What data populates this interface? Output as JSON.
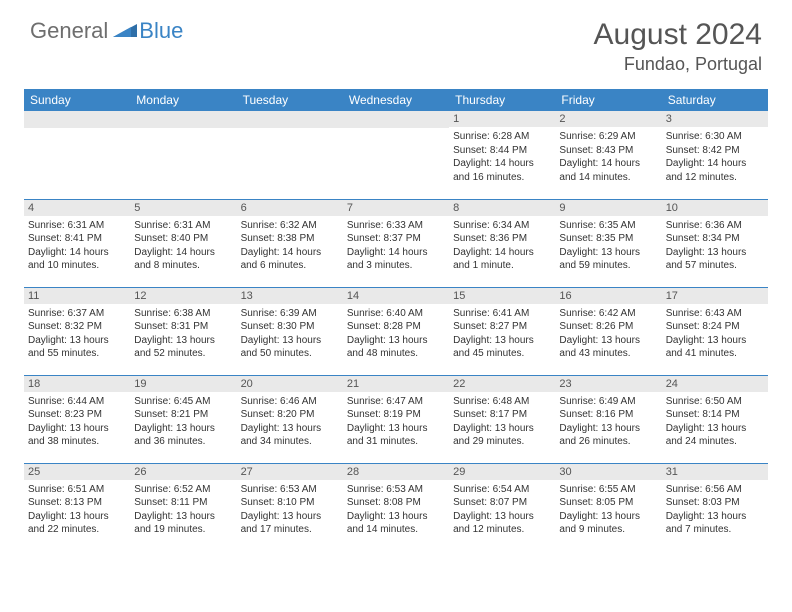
{
  "logo": {
    "text1": "General",
    "text2": "Blue"
  },
  "title": "August 2024",
  "location": "Fundao, Portugal",
  "colors": {
    "header_bg": "#3a84c5",
    "header_text": "#ffffff",
    "daynum_bg": "#e9e9e9",
    "border": "#3a84c5",
    "body_text": "#333333",
    "title_text": "#555555",
    "logo_gray": "#6e6e6e",
    "logo_blue": "#3a84c5"
  },
  "daysOfWeek": [
    "Sunday",
    "Monday",
    "Tuesday",
    "Wednesday",
    "Thursday",
    "Friday",
    "Saturday"
  ],
  "weeks": [
    [
      null,
      null,
      null,
      null,
      {
        "n": "1",
        "sr": "Sunrise: 6:28 AM",
        "ss": "Sunset: 8:44 PM",
        "dl": "Daylight: 14 hours and 16 minutes."
      },
      {
        "n": "2",
        "sr": "Sunrise: 6:29 AM",
        "ss": "Sunset: 8:43 PM",
        "dl": "Daylight: 14 hours and 14 minutes."
      },
      {
        "n": "3",
        "sr": "Sunrise: 6:30 AM",
        "ss": "Sunset: 8:42 PM",
        "dl": "Daylight: 14 hours and 12 minutes."
      }
    ],
    [
      {
        "n": "4",
        "sr": "Sunrise: 6:31 AM",
        "ss": "Sunset: 8:41 PM",
        "dl": "Daylight: 14 hours and 10 minutes."
      },
      {
        "n": "5",
        "sr": "Sunrise: 6:31 AM",
        "ss": "Sunset: 8:40 PM",
        "dl": "Daylight: 14 hours and 8 minutes."
      },
      {
        "n": "6",
        "sr": "Sunrise: 6:32 AM",
        "ss": "Sunset: 8:38 PM",
        "dl": "Daylight: 14 hours and 6 minutes."
      },
      {
        "n": "7",
        "sr": "Sunrise: 6:33 AM",
        "ss": "Sunset: 8:37 PM",
        "dl": "Daylight: 14 hours and 3 minutes."
      },
      {
        "n": "8",
        "sr": "Sunrise: 6:34 AM",
        "ss": "Sunset: 8:36 PM",
        "dl": "Daylight: 14 hours and 1 minute."
      },
      {
        "n": "9",
        "sr": "Sunrise: 6:35 AM",
        "ss": "Sunset: 8:35 PM",
        "dl": "Daylight: 13 hours and 59 minutes."
      },
      {
        "n": "10",
        "sr": "Sunrise: 6:36 AM",
        "ss": "Sunset: 8:34 PM",
        "dl": "Daylight: 13 hours and 57 minutes."
      }
    ],
    [
      {
        "n": "11",
        "sr": "Sunrise: 6:37 AM",
        "ss": "Sunset: 8:32 PM",
        "dl": "Daylight: 13 hours and 55 minutes."
      },
      {
        "n": "12",
        "sr": "Sunrise: 6:38 AM",
        "ss": "Sunset: 8:31 PM",
        "dl": "Daylight: 13 hours and 52 minutes."
      },
      {
        "n": "13",
        "sr": "Sunrise: 6:39 AM",
        "ss": "Sunset: 8:30 PM",
        "dl": "Daylight: 13 hours and 50 minutes."
      },
      {
        "n": "14",
        "sr": "Sunrise: 6:40 AM",
        "ss": "Sunset: 8:28 PM",
        "dl": "Daylight: 13 hours and 48 minutes."
      },
      {
        "n": "15",
        "sr": "Sunrise: 6:41 AM",
        "ss": "Sunset: 8:27 PM",
        "dl": "Daylight: 13 hours and 45 minutes."
      },
      {
        "n": "16",
        "sr": "Sunrise: 6:42 AM",
        "ss": "Sunset: 8:26 PM",
        "dl": "Daylight: 13 hours and 43 minutes."
      },
      {
        "n": "17",
        "sr": "Sunrise: 6:43 AM",
        "ss": "Sunset: 8:24 PM",
        "dl": "Daylight: 13 hours and 41 minutes."
      }
    ],
    [
      {
        "n": "18",
        "sr": "Sunrise: 6:44 AM",
        "ss": "Sunset: 8:23 PM",
        "dl": "Daylight: 13 hours and 38 minutes."
      },
      {
        "n": "19",
        "sr": "Sunrise: 6:45 AM",
        "ss": "Sunset: 8:21 PM",
        "dl": "Daylight: 13 hours and 36 minutes."
      },
      {
        "n": "20",
        "sr": "Sunrise: 6:46 AM",
        "ss": "Sunset: 8:20 PM",
        "dl": "Daylight: 13 hours and 34 minutes."
      },
      {
        "n": "21",
        "sr": "Sunrise: 6:47 AM",
        "ss": "Sunset: 8:19 PM",
        "dl": "Daylight: 13 hours and 31 minutes."
      },
      {
        "n": "22",
        "sr": "Sunrise: 6:48 AM",
        "ss": "Sunset: 8:17 PM",
        "dl": "Daylight: 13 hours and 29 minutes."
      },
      {
        "n": "23",
        "sr": "Sunrise: 6:49 AM",
        "ss": "Sunset: 8:16 PM",
        "dl": "Daylight: 13 hours and 26 minutes."
      },
      {
        "n": "24",
        "sr": "Sunrise: 6:50 AM",
        "ss": "Sunset: 8:14 PM",
        "dl": "Daylight: 13 hours and 24 minutes."
      }
    ],
    [
      {
        "n": "25",
        "sr": "Sunrise: 6:51 AM",
        "ss": "Sunset: 8:13 PM",
        "dl": "Daylight: 13 hours and 22 minutes."
      },
      {
        "n": "26",
        "sr": "Sunrise: 6:52 AM",
        "ss": "Sunset: 8:11 PM",
        "dl": "Daylight: 13 hours and 19 minutes."
      },
      {
        "n": "27",
        "sr": "Sunrise: 6:53 AM",
        "ss": "Sunset: 8:10 PM",
        "dl": "Daylight: 13 hours and 17 minutes."
      },
      {
        "n": "28",
        "sr": "Sunrise: 6:53 AM",
        "ss": "Sunset: 8:08 PM",
        "dl": "Daylight: 13 hours and 14 minutes."
      },
      {
        "n": "29",
        "sr": "Sunrise: 6:54 AM",
        "ss": "Sunset: 8:07 PM",
        "dl": "Daylight: 13 hours and 12 minutes."
      },
      {
        "n": "30",
        "sr": "Sunrise: 6:55 AM",
        "ss": "Sunset: 8:05 PM",
        "dl": "Daylight: 13 hours and 9 minutes."
      },
      {
        "n": "31",
        "sr": "Sunrise: 6:56 AM",
        "ss": "Sunset: 8:03 PM",
        "dl": "Daylight: 13 hours and 7 minutes."
      }
    ]
  ]
}
